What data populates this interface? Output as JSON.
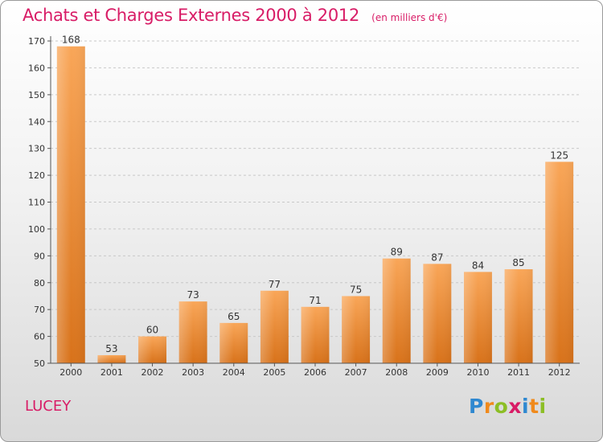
{
  "chart_data": {
    "type": "bar",
    "title": "Achats et Charges Externes 2000 à 2012",
    "unit": "(en milliers d'€)",
    "categories": [
      "2000",
      "2001",
      "2002",
      "2003",
      "2004",
      "2005",
      "2006",
      "2007",
      "2008",
      "2009",
      "2010",
      "2011",
      "2012"
    ],
    "values": [
      168,
      53,
      60,
      73,
      65,
      77,
      71,
      75,
      89,
      87,
      84,
      85,
      125
    ],
    "ylim": [
      50,
      170
    ],
    "yticks": [
      50,
      60,
      70,
      80,
      90,
      100,
      110,
      120,
      130,
      140,
      150,
      160,
      170
    ],
    "grid": true,
    "bar_color": "#f0882c"
  },
  "commune": "LUCEY",
  "logo": "Proxiti",
  "colors": {
    "title": "#d81c66",
    "bar_light": "#f8a65c",
    "bar_dark": "#d8721a"
  }
}
